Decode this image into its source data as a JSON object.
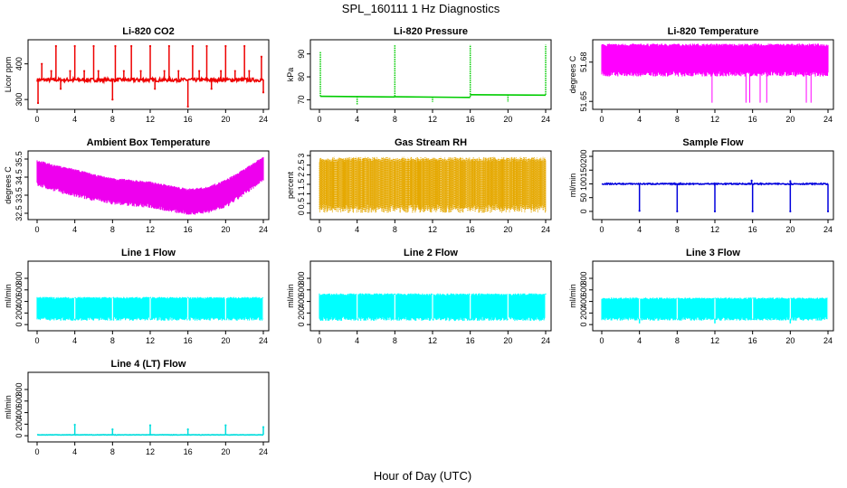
{
  "figure": {
    "title": "SPL_160111  1 Hz Diagnostics",
    "xlabel": "Hour of Day (UTC)"
  },
  "chart_data": [
    {
      "type": "line",
      "title": "Li-820 CO2",
      "ylabel": "Licor ppm",
      "color": "#ee0000",
      "xlim": [
        0,
        24
      ],
      "ylim": [
        280,
        460
      ],
      "xticks": [
        0,
        4,
        8,
        12,
        16,
        20,
        24
      ],
      "yticks": [
        300,
        400
      ],
      "pattern": "baseline",
      "baseline": 355,
      "noise": 5,
      "spikes": [
        {
          "x": 0.1,
          "y": 290
        },
        {
          "x": 0.5,
          "y": 400
        },
        {
          "x": 1.5,
          "y": 380
        },
        {
          "x": 2.0,
          "y": 450
        },
        {
          "x": 2.5,
          "y": 330
        },
        {
          "x": 3.5,
          "y": 380
        },
        {
          "x": 4.0,
          "y": 450
        },
        {
          "x": 5.0,
          "y": 380
        },
        {
          "x": 6.0,
          "y": 450
        },
        {
          "x": 6.5,
          "y": 380
        },
        {
          "x": 8.0,
          "y": 300
        },
        {
          "x": 8.3,
          "y": 450
        },
        {
          "x": 9.2,
          "y": 380
        },
        {
          "x": 10.0,
          "y": 450
        },
        {
          "x": 11.0,
          "y": 380
        },
        {
          "x": 12.0,
          "y": 450
        },
        {
          "x": 12.5,
          "y": 330
        },
        {
          "x": 13.5,
          "y": 380
        },
        {
          "x": 14.0,
          "y": 450
        },
        {
          "x": 15.0,
          "y": 380
        },
        {
          "x": 16.0,
          "y": 280
        },
        {
          "x": 16.5,
          "y": 450
        },
        {
          "x": 17.2,
          "y": 380
        },
        {
          "x": 18.0,
          "y": 450
        },
        {
          "x": 18.5,
          "y": 330
        },
        {
          "x": 19.5,
          "y": 380
        },
        {
          "x": 20.0,
          "y": 450
        },
        {
          "x": 21.0,
          "y": 380
        },
        {
          "x": 22.0,
          "y": 450
        },
        {
          "x": 22.5,
          "y": 380
        },
        {
          "x": 23.8,
          "y": 420
        },
        {
          "x": 24.0,
          "y": 320
        }
      ]
    },
    {
      "type": "line",
      "title": "Li-820 Pressure",
      "ylabel": "kPa",
      "color": "#00cc00",
      "xlim": [
        0,
        24
      ],
      "ylim": [
        67,
        95
      ],
      "xticks": [
        0,
        4,
        8,
        12,
        16,
        20,
        24
      ],
      "yticks": [
        70,
        80,
        90
      ],
      "pattern": "segments",
      "segments": [
        {
          "x0": 0.1,
          "x1": 8.0,
          "y0": 71.5,
          "y1": 71.2
        },
        {
          "x0": 8.0,
          "x1": 16.0,
          "y0": 71.3,
          "y1": 71.0
        },
        {
          "x0": 16.0,
          "x1": 24.0,
          "y0": 72.2,
          "y1": 72.0
        }
      ],
      "spikes": [
        {
          "x": 0.1,
          "y": 91
        },
        {
          "x": 4.0,
          "y": 68
        },
        {
          "x": 8.0,
          "y": 94
        },
        {
          "x": 12.0,
          "y": 69
        },
        {
          "x": 16.0,
          "y": 94
        },
        {
          "x": 20.0,
          "y": 69
        },
        {
          "x": 24.0,
          "y": 94
        }
      ]
    },
    {
      "type": "band",
      "title": "Li-820 Temperature",
      "ylabel": "degrees C",
      "color": "#ff00ff",
      "xlim": [
        0,
        24
      ],
      "ylim": [
        51.646,
        51.695
      ],
      "xticks": [
        0,
        4,
        8,
        12,
        16,
        20,
        24
      ],
      "yticks": [
        51.65,
        51.68
      ],
      "lower": 51.671,
      "upper": 51.693,
      "drops": [
        {
          "x": 11.7,
          "y": 51.649
        },
        {
          "x": 15.3,
          "y": 51.649
        },
        {
          "x": 15.7,
          "y": 51.649
        },
        {
          "x": 16.8,
          "y": 51.649
        },
        {
          "x": 17.5,
          "y": 51.649
        },
        {
          "x": 21.7,
          "y": 51.649
        },
        {
          "x": 22.2,
          "y": 51.649
        }
      ]
    },
    {
      "type": "band",
      "title": "Ambient Box Temperature",
      "ylabel": "degrees C",
      "color": "#ee00ee",
      "xlim": [
        0,
        24
      ],
      "ylim": [
        32.3,
        35.8
      ],
      "xticks": [
        0,
        4,
        8,
        12,
        16,
        20,
        24
      ],
      "yticks": [
        32.5,
        33.5,
        34.5,
        35.5
      ],
      "curve": {
        "x": [
          0,
          2,
          4,
          6,
          8,
          10,
          12,
          14,
          16,
          18,
          20,
          22,
          24
        ],
        "lower": [
          34.1,
          33.8,
          33.5,
          33.3,
          33.1,
          33.0,
          32.9,
          32.7,
          32.5,
          32.6,
          32.9,
          33.6,
          34.4
        ],
        "upper": [
          35.4,
          35.1,
          34.9,
          34.6,
          34.4,
          34.3,
          34.2,
          34.0,
          33.8,
          33.9,
          34.3,
          34.9,
          35.6
        ]
      }
    },
    {
      "type": "band",
      "title": "Gas Stream RH",
      "ylabel": "percent",
      "color": "#e5a800",
      "xlim": [
        0,
        24
      ],
      "ylim": [
        -0.2,
        3.1
      ],
      "xticks": [
        0,
        4,
        8,
        12,
        16,
        20,
        24
      ],
      "yticks": [
        0.0,
        0.5,
        1.0,
        1.5,
        2.0,
        2.5,
        3.0
      ],
      "lower": 0.25,
      "upper": 2.8,
      "texture": "dotted"
    },
    {
      "type": "line",
      "title": "Sample Flow",
      "ylabel": "ml/min",
      "color": "#0000dd",
      "xlim": [
        0,
        24
      ],
      "ylim": [
        -20,
        210
      ],
      "xticks": [
        0,
        4,
        8,
        12,
        16,
        20,
        24
      ],
      "yticks": [
        0,
        50,
        100,
        150,
        200
      ],
      "pattern": "baseline",
      "baseline": 100,
      "noise": 2,
      "spikes": [
        {
          "x": 4.0,
          "y": 2
        },
        {
          "x": 8.0,
          "y": 0
        },
        {
          "x": 12.0,
          "y": 0
        },
        {
          "x": 15.9,
          "y": 112
        },
        {
          "x": 16.0,
          "y": 0
        },
        {
          "x": 20.0,
          "y": 0
        },
        {
          "x": 24.0,
          "y": 0
        },
        {
          "x": 20.0,
          "y": 110
        }
      ]
    },
    {
      "type": "band",
      "title": "Line 1 Flow",
      "ylabel": "ml/min",
      "color": "#00ffff",
      "xlim": [
        0,
        24
      ],
      "ylim": [
        -60,
        1050
      ],
      "xticks": [
        0,
        4,
        8,
        12,
        16,
        20,
        24
      ],
      "yticks": [
        0,
        200,
        400,
        600,
        800
      ],
      "lower": 100,
      "upper": 460,
      "gaps": [
        4,
        8,
        12,
        16,
        20,
        24
      ]
    },
    {
      "type": "band",
      "title": "Line 2 Flow",
      "ylabel": "ml/min",
      "color": "#00ffff",
      "xlim": [
        0,
        24
      ],
      "ylim": [
        -60,
        1050
      ],
      "xticks": [
        0,
        4,
        8,
        12,
        16,
        20,
        24
      ],
      "yticks": [
        0,
        200,
        400,
        600,
        800
      ],
      "lower": 100,
      "upper": 520,
      "gaps": [
        4,
        8,
        12,
        16,
        20,
        24
      ]
    },
    {
      "type": "band",
      "title": "Line 3 Flow",
      "ylabel": "ml/min",
      "color": "#00ffff",
      "xlim": [
        0,
        24
      ],
      "ylim": [
        -60,
        1050
      ],
      "xticks": [
        0,
        4,
        8,
        12,
        16,
        20,
        24
      ],
      "yticks": [
        0,
        200,
        400,
        600,
        800
      ],
      "lower": 100,
      "upper": 450,
      "gaps": [
        4,
        8,
        12,
        16,
        20,
        24
      ],
      "dips": [
        {
          "x": 4.0,
          "y": 20
        },
        {
          "x": 12.0,
          "y": 20
        },
        {
          "x": 20.0,
          "y": 20
        }
      ]
    },
    {
      "type": "line",
      "title": "Line 4 (LT) Flow",
      "ylabel": "ml/min",
      "color": "#00dddd",
      "xlim": [
        0,
        24
      ],
      "ylim": [
        -60,
        1050
      ],
      "xticks": [
        0,
        4,
        8,
        12,
        16,
        20,
        24
      ],
      "yticks": [
        0,
        200,
        400,
        600,
        800
      ],
      "pattern": "baseline",
      "baseline": 15,
      "noise": 3,
      "spikes": [
        {
          "x": 4.0,
          "y": 190
        },
        {
          "x": 8.0,
          "y": 110
        },
        {
          "x": 12.0,
          "y": 180
        },
        {
          "x": 16.0,
          "y": 110
        },
        {
          "x": 20.0,
          "y": 180
        },
        {
          "x": 24.0,
          "y": 150
        }
      ]
    }
  ]
}
